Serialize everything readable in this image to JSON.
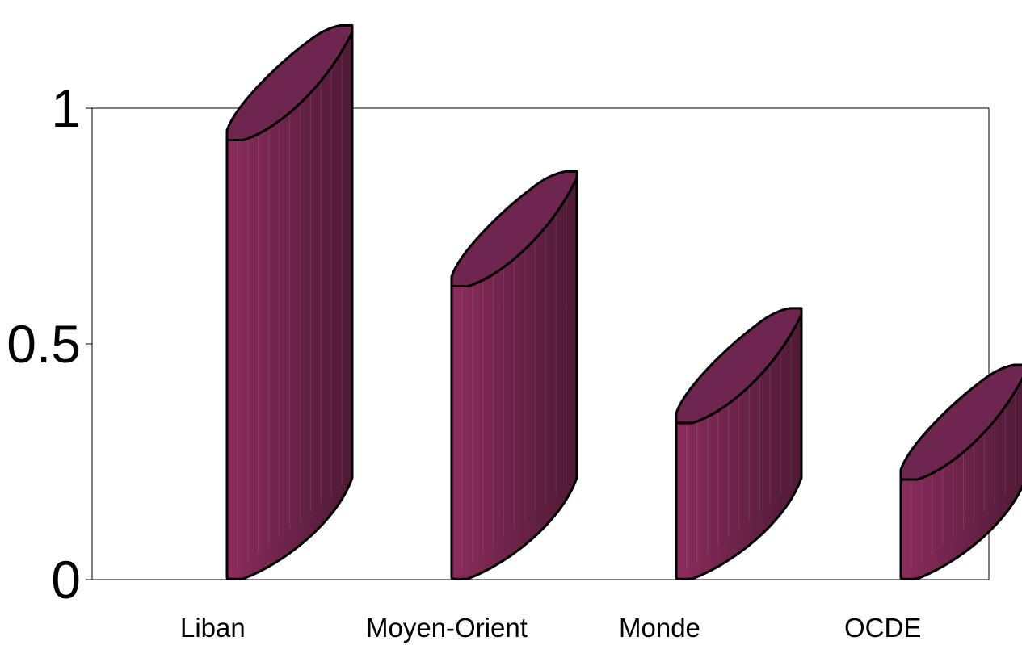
{
  "chart_data": {
    "type": "bar",
    "style": "3d-cylinder",
    "categories": [
      "Liban",
      "Moyen-Orient",
      "Monde",
      "OCDE"
    ],
    "values": [
      0.97,
      0.66,
      0.37,
      0.25
    ],
    "title": "",
    "xlabel": "",
    "ylabel": "",
    "ylim": [
      0,
      1
    ],
    "yticks": [
      {
        "value": 0,
        "label": "0"
      },
      {
        "value": 0.5,
        "label": "0.5"
      },
      {
        "value": 1,
        "label": "1"
      }
    ],
    "grid": false,
    "legend": "none",
    "colors": {
      "bar_front_light": "#8a2c5c",
      "bar_front_dark": "#4e1a35",
      "bar_top": "#6e2550",
      "outline": "#000000",
      "axis": "#000000"
    }
  }
}
